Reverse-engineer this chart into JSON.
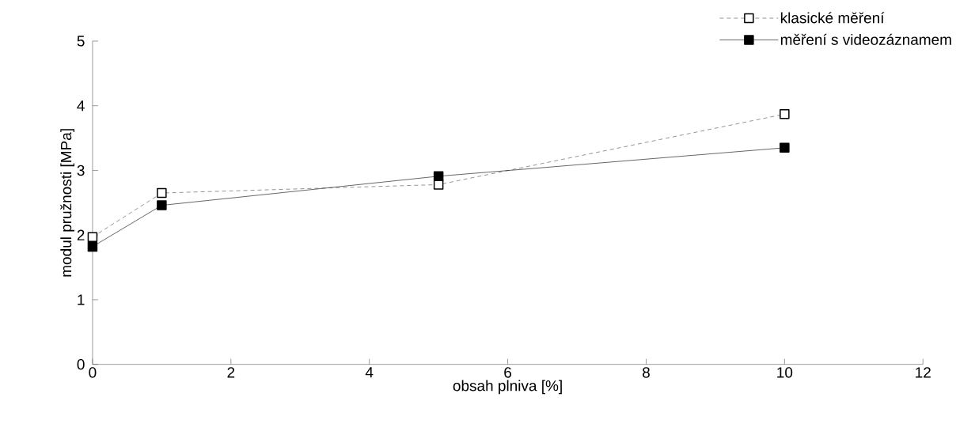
{
  "chart_data": {
    "type": "line",
    "xlabel": "obsah plniva [%]",
    "ylabel": "modul pružnosti [MPa]",
    "xlim": [
      0,
      12
    ],
    "xticks": [
      0,
      2,
      4,
      6,
      8,
      10,
      12
    ],
    "ylim": [
      0,
      5
    ],
    "yticks": [
      0,
      1,
      2,
      3,
      4,
      5
    ],
    "x": [
      0,
      1,
      5,
      10
    ],
    "marker": "square",
    "legend": "top right",
    "grid": false,
    "series": [
      {
        "name": "klasické měření",
        "color": "#000000",
        "line_style": "dashed",
        "values": [
          1.97,
          2.65,
          2.78,
          3.87
        ]
      },
      {
        "name": "měření s videozáznamem",
        "color": "#000000",
        "line_style": "solid",
        "values": [
          1.82,
          2.46,
          2.91,
          3.35
        ]
      }
    ]
  }
}
